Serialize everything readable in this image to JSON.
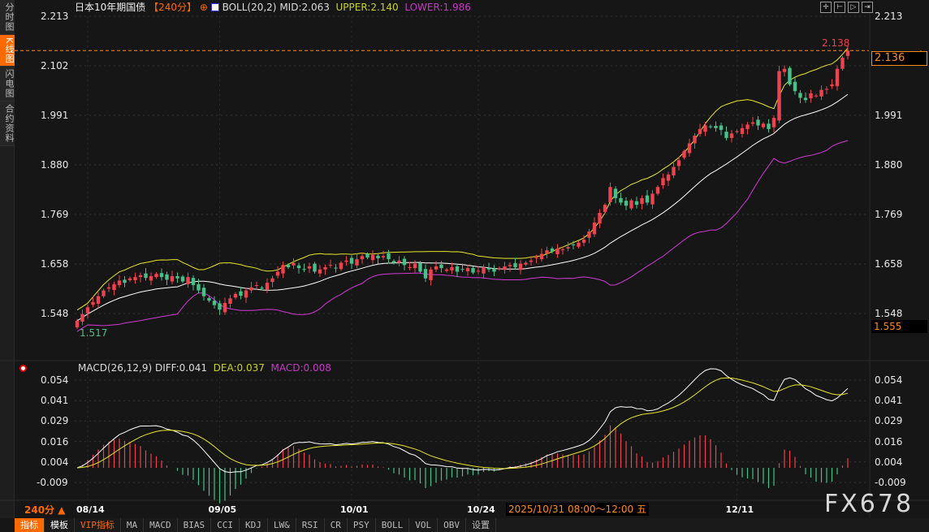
{
  "sidebar": {
    "items": [
      {
        "label": "分时图",
        "active": false
      },
      {
        "label": "K线图",
        "active": true
      },
      {
        "label": "闪电图",
        "active": false
      },
      {
        "label": "合约资料",
        "active": false
      }
    ]
  },
  "header": {
    "instrument": "日本10年期国债",
    "period": "【240分】",
    "boll": "BOLL(20,2)",
    "mid": "MID:2.063",
    "upper": "UPPER:2.140",
    "lower": "LOWER:1.986"
  },
  "macd_header": {
    "name": "MACD(26,12,9)",
    "diff": "DIFF:0.041",
    "dea": "DEA:0.037",
    "macd": "MACD:0.008"
  },
  "tools": [
    "crosshair-icon",
    "zoom-in-icon",
    "zoom-out-icon",
    "move-right-icon"
  ],
  "colors": {
    "up": "#f0424e",
    "down": "#47c08a",
    "mid": "#ffffff",
    "upper": "#e6e62a",
    "lower": "#d23ad6",
    "accent": "#ff6a00"
  },
  "price_axis": {
    "ticks": [
      "2.213",
      "2.102",
      "1.991",
      "1.880",
      "1.769",
      "1.658",
      "1.548"
    ]
  },
  "macd_axis": {
    "ticks": [
      "0.054",
      "0.041",
      "0.029",
      "0.016",
      "0.004",
      "-0.009"
    ]
  },
  "markers": {
    "high": "2.138",
    "low": "1.517",
    "last": "2.136",
    "low_box": "1.555"
  },
  "period_label": "240分 ▲",
  "date_info": "2025/10/31 08:00～12:00 五",
  "watermark": "FX678",
  "bottom_bar": [
    "指标",
    "模板",
    "VIP指标",
    "MA",
    "MACD",
    "BIAS",
    "CCI",
    "KDJ",
    "LW&",
    "RSI",
    "CR",
    "PSY",
    "BOLL",
    "VOL",
    "OBV",
    "设置"
  ],
  "chart_data": {
    "type": "candlestick",
    "ylim": [
      1.493,
      2.213
    ],
    "macd_ylim": [
      -0.02,
      0.058
    ],
    "x_ticks": [
      {
        "label": "08/14",
        "index": 2
      },
      {
        "label": "09/05",
        "index": 27
      },
      {
        "label": "10/01",
        "index": 52
      },
      {
        "label": "10/24",
        "index": 76
      },
      {
        "label": "12/11",
        "index": 125
      }
    ],
    "closes": [
      1.53,
      1.545,
      1.56,
      1.572,
      1.585,
      1.598,
      1.605,
      1.612,
      1.62,
      1.615,
      1.625,
      1.628,
      1.632,
      1.626,
      1.63,
      1.635,
      1.628,
      1.622,
      1.63,
      1.625,
      1.618,
      1.628,
      1.61,
      1.598,
      1.585,
      1.575,
      1.565,
      1.555,
      1.57,
      1.58,
      1.59,
      1.586,
      1.598,
      1.605,
      1.61,
      1.602,
      1.615,
      1.625,
      1.64,
      1.655,
      1.65,
      1.66,
      1.648,
      1.645,
      1.652,
      1.64,
      1.645,
      1.65,
      1.655,
      1.648,
      1.66,
      1.665,
      1.658,
      1.668,
      1.675,
      1.672,
      1.678,
      1.67,
      1.675,
      1.668,
      1.66,
      1.665,
      1.655,
      1.65,
      1.658,
      1.64,
      1.625,
      1.645,
      1.652,
      1.648,
      1.645,
      1.65,
      1.64,
      1.645,
      1.648,
      1.638,
      1.642,
      1.65,
      1.645,
      1.64,
      1.648,
      1.652,
      1.655,
      1.65,
      1.658,
      1.66,
      1.665,
      1.672,
      1.68,
      1.688,
      1.685,
      1.692,
      1.69,
      1.695,
      1.7,
      1.705,
      1.712,
      1.73,
      1.75,
      1.772,
      1.79,
      1.83,
      1.805,
      1.795,
      1.788,
      1.8,
      1.79,
      1.805,
      1.795,
      1.815,
      1.83,
      1.85,
      1.858,
      1.875,
      1.89,
      1.91,
      1.928,
      1.945,
      1.96,
      1.968,
      1.965,
      1.962,
      1.958,
      1.94,
      1.95,
      1.955,
      1.962,
      1.97,
      1.975,
      1.968,
      1.972,
      1.96,
      1.985,
      2.09,
      2.095,
      2.06,
      2.045,
      2.03,
      2.025,
      2.04,
      2.035,
      2.048,
      2.05,
      2.06,
      2.095,
      2.12,
      2.136
    ]
  }
}
